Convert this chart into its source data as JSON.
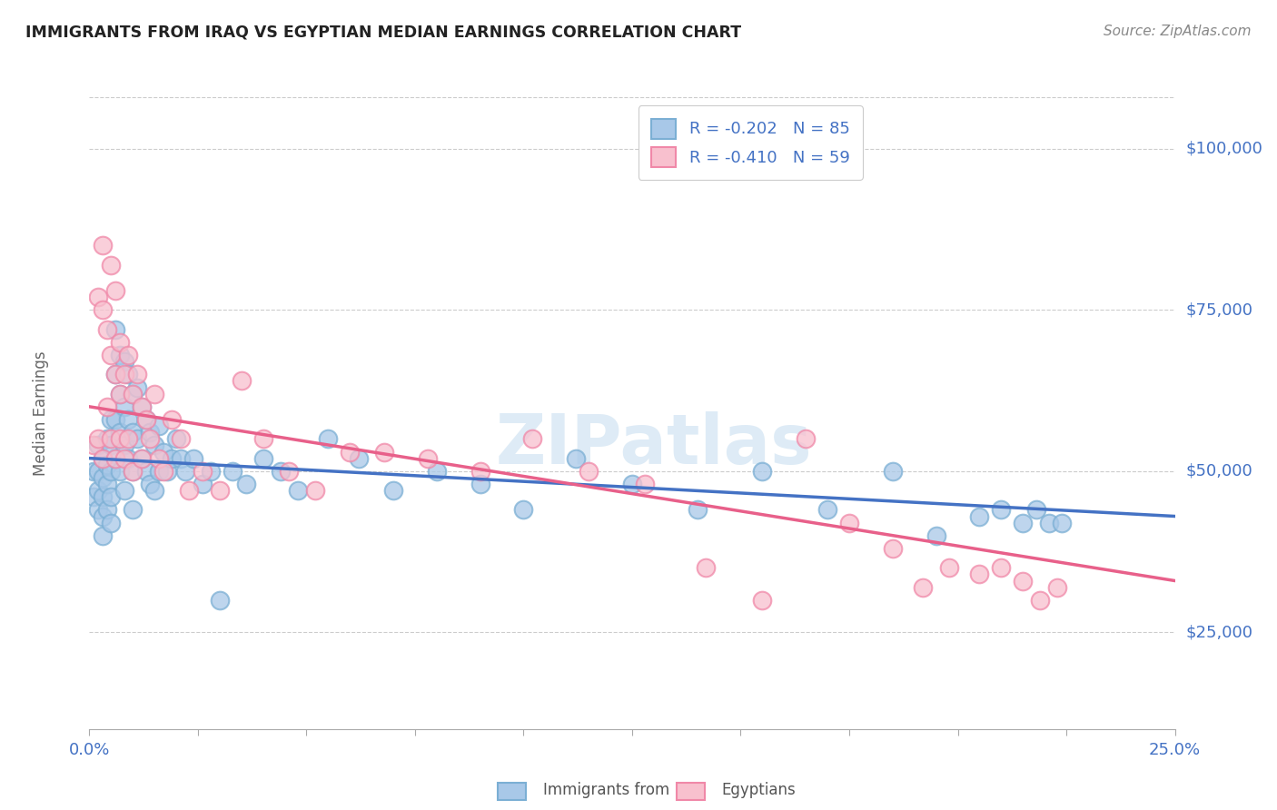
{
  "title": "IMMIGRANTS FROM IRAQ VS EGYPTIAN MEDIAN EARNINGS CORRELATION CHART",
  "source": "Source: ZipAtlas.com",
  "ylabel": "Median Earnings",
  "yticks": [
    25000,
    50000,
    75000,
    100000
  ],
  "ytick_labels": [
    "$25,000",
    "$50,000",
    "$75,000",
    "$100,000"
  ],
  "xmin": 0.0,
  "xmax": 0.25,
  "ymin": 10000,
  "ymax": 108000,
  "blue_R": "-0.202",
  "blue_N": "85",
  "pink_R": "-0.410",
  "pink_N": "59",
  "blue_color": "#a8c8e8",
  "blue_edge_color": "#7bafd4",
  "pink_color": "#f8c0ce",
  "pink_edge_color": "#f088a8",
  "blue_line_color": "#4472c4",
  "pink_line_color": "#e8608a",
  "label_color": "#4472c4",
  "watermark": "ZIPatlas",
  "legend_label_blue": "Immigrants from Iraq",
  "legend_label_pink": "Egyptians",
  "blue_points_x": [
    0.001,
    0.001,
    0.002,
    0.002,
    0.002,
    0.002,
    0.003,
    0.003,
    0.003,
    0.003,
    0.003,
    0.004,
    0.004,
    0.004,
    0.004,
    0.005,
    0.005,
    0.005,
    0.005,
    0.005,
    0.006,
    0.006,
    0.006,
    0.006,
    0.007,
    0.007,
    0.007,
    0.007,
    0.008,
    0.008,
    0.008,
    0.008,
    0.009,
    0.009,
    0.009,
    0.01,
    0.01,
    0.01,
    0.01,
    0.011,
    0.011,
    0.012,
    0.012,
    0.013,
    0.013,
    0.014,
    0.014,
    0.015,
    0.015,
    0.016,
    0.016,
    0.017,
    0.018,
    0.019,
    0.02,
    0.021,
    0.022,
    0.024,
    0.026,
    0.028,
    0.03,
    0.033,
    0.036,
    0.04,
    0.044,
    0.048,
    0.055,
    0.062,
    0.07,
    0.08,
    0.09,
    0.1,
    0.112,
    0.125,
    0.14,
    0.155,
    0.17,
    0.185,
    0.195,
    0.205,
    0.21,
    0.215,
    0.218,
    0.221,
    0.224
  ],
  "blue_points_y": [
    50000,
    46000,
    54000,
    50000,
    47000,
    44000,
    52000,
    49000,
    46000,
    43000,
    40000,
    55000,
    51000,
    48000,
    44000,
    58000,
    54000,
    50000,
    46000,
    42000,
    72000,
    65000,
    58000,
    52000,
    68000,
    62000,
    56000,
    50000,
    67000,
    60000,
    54000,
    47000,
    65000,
    58000,
    52000,
    62000,
    56000,
    50000,
    44000,
    63000,
    55000,
    60000,
    52000,
    58000,
    50000,
    56000,
    48000,
    54000,
    47000,
    57000,
    50000,
    53000,
    50000,
    52000,
    55000,
    52000,
    50000,
    52000,
    48000,
    50000,
    30000,
    50000,
    48000,
    52000,
    50000,
    47000,
    55000,
    52000,
    47000,
    50000,
    48000,
    44000,
    52000,
    48000,
    44000,
    50000,
    44000,
    50000,
    40000,
    43000,
    44000,
    42000,
    44000,
    42000,
    42000
  ],
  "pink_points_x": [
    0.001,
    0.002,
    0.002,
    0.003,
    0.003,
    0.003,
    0.004,
    0.004,
    0.005,
    0.005,
    0.005,
    0.006,
    0.006,
    0.006,
    0.007,
    0.007,
    0.007,
    0.008,
    0.008,
    0.009,
    0.009,
    0.01,
    0.01,
    0.011,
    0.012,
    0.012,
    0.013,
    0.014,
    0.015,
    0.016,
    0.017,
    0.019,
    0.021,
    0.023,
    0.026,
    0.03,
    0.035,
    0.04,
    0.046,
    0.052,
    0.06,
    0.068,
    0.078,
    0.09,
    0.102,
    0.115,
    0.128,
    0.142,
    0.155,
    0.165,
    0.175,
    0.185,
    0.192,
    0.198,
    0.205,
    0.21,
    0.215,
    0.219,
    0.223
  ],
  "pink_points_y": [
    54000,
    77000,
    55000,
    85000,
    75000,
    52000,
    72000,
    60000,
    82000,
    68000,
    55000,
    78000,
    65000,
    52000,
    70000,
    62000,
    55000,
    65000,
    52000,
    68000,
    55000,
    62000,
    50000,
    65000,
    60000,
    52000,
    58000,
    55000,
    62000,
    52000,
    50000,
    58000,
    55000,
    47000,
    50000,
    47000,
    64000,
    55000,
    50000,
    47000,
    53000,
    53000,
    52000,
    50000,
    55000,
    50000,
    48000,
    35000,
    30000,
    55000,
    42000,
    38000,
    32000,
    35000,
    34000,
    35000,
    33000,
    30000,
    32000
  ]
}
